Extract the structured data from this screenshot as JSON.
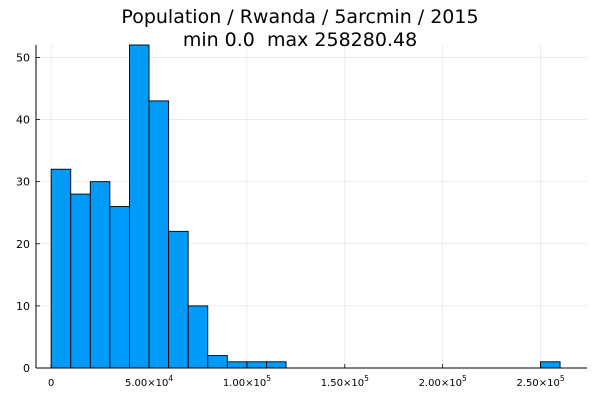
{
  "title_line1": "Population / Rwanda / 5arcmin / 2015",
  "title_line2": "min 0.0  max 258280.48",
  "chart_data": {
    "type": "bar",
    "title": "Population / Rwanda / 5arcmin / 2015\nmin 0.0  max 258280.48",
    "xlabel": "",
    "ylabel": "",
    "bin_width": 10000,
    "bins": [
      {
        "x0": 0,
        "x1": 10000,
        "count": 32
      },
      {
        "x0": 10000,
        "x1": 20000,
        "count": 28
      },
      {
        "x0": 20000,
        "x1": 30000,
        "count": 30
      },
      {
        "x0": 30000,
        "x1": 40000,
        "count": 26
      },
      {
        "x0": 40000,
        "x1": 50000,
        "count": 52
      },
      {
        "x0": 50000,
        "x1": 60000,
        "count": 43
      },
      {
        "x0": 60000,
        "x1": 70000,
        "count": 22
      },
      {
        "x0": 70000,
        "x1": 80000,
        "count": 10
      },
      {
        "x0": 80000,
        "x1": 90000,
        "count": 2
      },
      {
        "x0": 90000,
        "x1": 100000,
        "count": 1
      },
      {
        "x0": 100000,
        "x1": 110000,
        "count": 1
      },
      {
        "x0": 110000,
        "x1": 120000,
        "count": 1
      },
      {
        "x0": 250000,
        "x1": 260000,
        "count": 1
      }
    ],
    "xlim": [
      -7745,
      273745
    ],
    "ylim": [
      0,
      52
    ],
    "x_ticks": [
      {
        "value": 0,
        "mantissa": "0",
        "exp": ""
      },
      {
        "value": 50000,
        "mantissa": "5.00×10",
        "exp": "4"
      },
      {
        "value": 100000,
        "mantissa": "1.00×10",
        "exp": "5"
      },
      {
        "value": 150000,
        "mantissa": "1.50×10",
        "exp": "5"
      },
      {
        "value": 200000,
        "mantissa": "2.00×10",
        "exp": "5"
      },
      {
        "value": 250000,
        "mantissa": "2.50×10",
        "exp": "5"
      }
    ],
    "y_ticks": [
      0,
      10,
      20,
      30,
      40,
      50
    ],
    "grid": true,
    "legend": "none",
    "bar_color": "#009AF9",
    "bar_edge_color": "#000000"
  }
}
